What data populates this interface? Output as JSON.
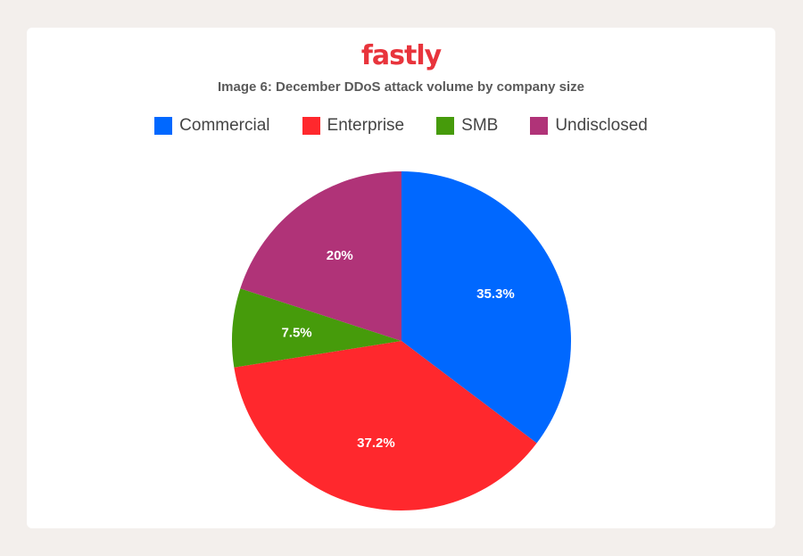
{
  "brand": {
    "logo_text": "fastly"
  },
  "colors": {
    "brand": "#e8343c",
    "title_text": "#5a5a5a",
    "legend_text": "#444444",
    "slice_label": "#ffffff"
  },
  "chart_data": {
    "type": "pie",
    "title": "Image 6:  December DDoS attack volume by company size",
    "legend_position": "top",
    "slices": [
      {
        "name": "Commercial",
        "value": 35.3,
        "label": "35.3%",
        "color": "#0068ff"
      },
      {
        "name": "Enterprise",
        "value": 37.2,
        "label": "37.2%",
        "color": "#ff282d"
      },
      {
        "name": "SMB",
        "value": 7.5,
        "label": "7.5%",
        "color": "#469b0b"
      },
      {
        "name": "Undisclosed",
        "value": 20,
        "label": "20%",
        "color": "#b03378"
      }
    ]
  }
}
